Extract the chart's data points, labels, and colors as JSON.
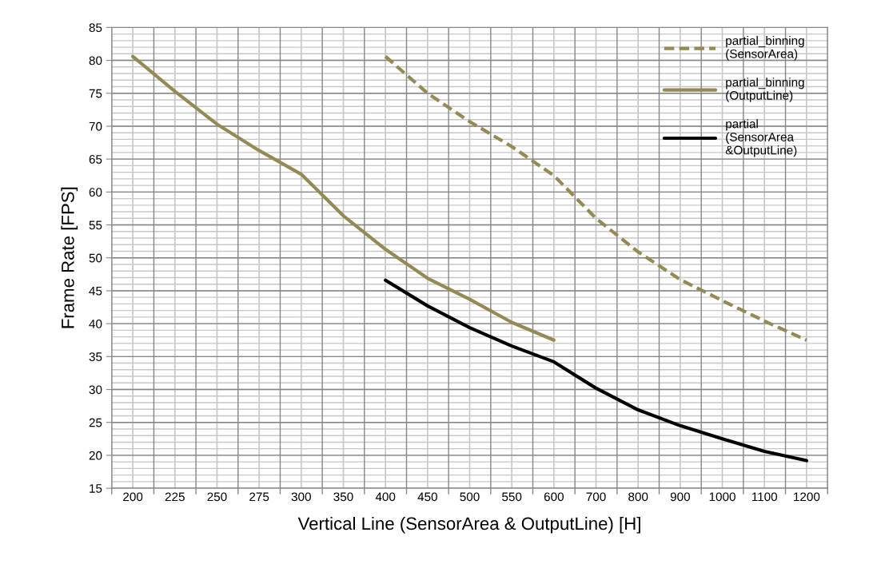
{
  "chart_data": {
    "type": "line",
    "xlabel": "Vertical Line (SensorArea & OutputLine) [H]",
    "ylabel": "Frame Rate [FPS]",
    "categories": [
      "200",
      "225",
      "250",
      "275",
      "300",
      "350",
      "400",
      "450",
      "500",
      "550",
      "600",
      "700",
      "800",
      "900",
      "1000",
      "1100",
      "1200"
    ],
    "ylim": [
      15,
      85
    ],
    "yticks": [
      15,
      20,
      25,
      30,
      35,
      40,
      45,
      50,
      55,
      60,
      65,
      70,
      75,
      80,
      85
    ],
    "grid": true,
    "legend": "top right",
    "marker": "none",
    "series": [
      {
        "name": "partial_binning\n(SensorArea)",
        "color": "#948a54",
        "line_style": "dashed",
        "values": [
          null,
          null,
          null,
          null,
          null,
          null,
          80.6,
          75.0,
          70.7,
          66.9,
          62.5,
          56.0,
          50.9,
          46.7,
          43.5,
          40.4,
          37.5
        ]
      },
      {
        "name": "partial_binning\n(OutputLine)",
        "color": "#948a54",
        "line_style": "solid",
        "values": [
          80.6,
          75.3,
          70.3,
          66.3,
          62.7,
          56.4,
          51.3,
          46.9,
          43.7,
          40.2,
          37.5,
          null,
          null,
          null,
          null,
          null,
          null
        ]
      },
      {
        "name": "partial\n(SensorArea\n&OutputLine)",
        "color": "#000000",
        "line_style": "solid",
        "values": [
          null,
          null,
          null,
          null,
          null,
          null,
          46.6,
          42.7,
          39.4,
          36.6,
          34.2,
          30.2,
          26.9,
          24.5,
          22.5,
          20.6,
          19.2
        ]
      }
    ]
  }
}
